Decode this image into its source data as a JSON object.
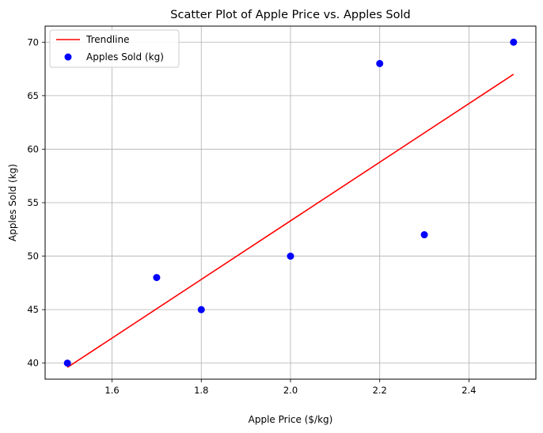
{
  "chart_data": {
    "type": "scatter",
    "title": "Scatter Plot of Apple Price vs. Apples Sold",
    "xlabel": "Apple Price ($/kg)",
    "ylabel": "Apples Sold (kg)",
    "xlim": [
      1.45,
      2.55
    ],
    "ylim": [
      38.5,
      71.5
    ],
    "xticks": [
      1.6,
      1.8,
      2.0,
      2.2,
      2.4
    ],
    "xtick_labels": [
      "1.6",
      "1.8",
      "2.0",
      "2.2",
      "2.4"
    ],
    "yticks": [
      40,
      45,
      50,
      55,
      60,
      65,
      70
    ],
    "ytick_labels": [
      "40",
      "45",
      "50",
      "55",
      "60",
      "65",
      "70"
    ],
    "grid": true,
    "legend_position": "upper-left",
    "series": [
      {
        "name": "Apples Sold (kg)",
        "kind": "scatter",
        "color": "#0000ff",
        "x": [
          1.5,
          1.7,
          1.8,
          2.0,
          2.2,
          2.3,
          2.5
        ],
        "y": [
          40,
          48,
          45,
          50,
          68,
          52,
          70
        ]
      },
      {
        "name": "Trendline",
        "kind": "line",
        "color": "#ff0000",
        "x": [
          1.5,
          2.5
        ],
        "y": [
          39.6,
          67.0
        ]
      }
    ]
  }
}
